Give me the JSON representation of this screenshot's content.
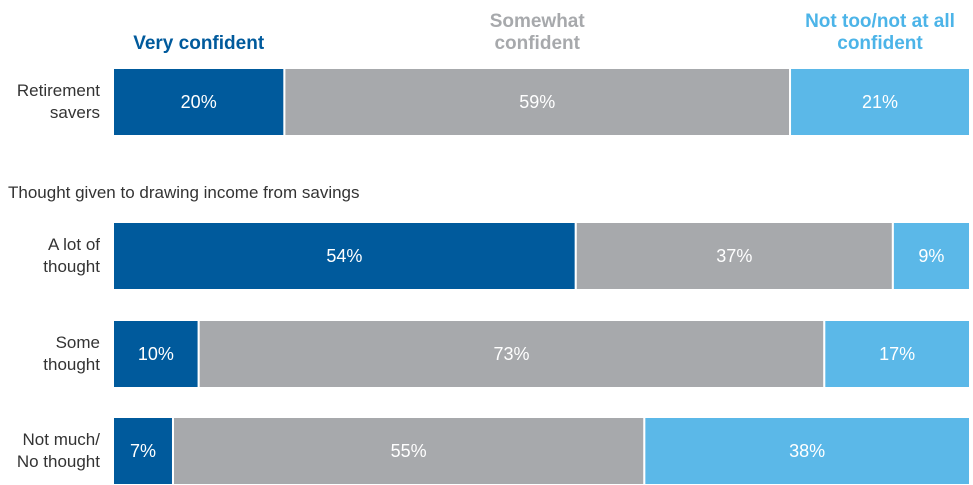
{
  "chart_data": {
    "type": "stacked-bar-horizontal",
    "subtitle": "Thought given to drawing income from savings",
    "categories": [
      "Retirement savers",
      "A lot of thought",
      "Some thought",
      "Not much/ No thought"
    ],
    "series": [
      {
        "name": "Very confident",
        "color": "#005a9c",
        "values": [
          20,
          54,
          10,
          7
        ],
        "value_labels": [
          "20%",
          "54%",
          "10%",
          "7%"
        ]
      },
      {
        "name": "Somewhat confident",
        "color": "#a7a9ac",
        "values": [
          59,
          37,
          73,
          55
        ],
        "value_labels": [
          "59%",
          "37%",
          "73%",
          "55%"
        ]
      },
      {
        "name": "Not too/not at all confident",
        "color": "#5bb8e8",
        "values": [
          21,
          9,
          17,
          38
        ],
        "value_labels": [
          "21%",
          "9%",
          "17%",
          "38%"
        ]
      }
    ]
  }
}
